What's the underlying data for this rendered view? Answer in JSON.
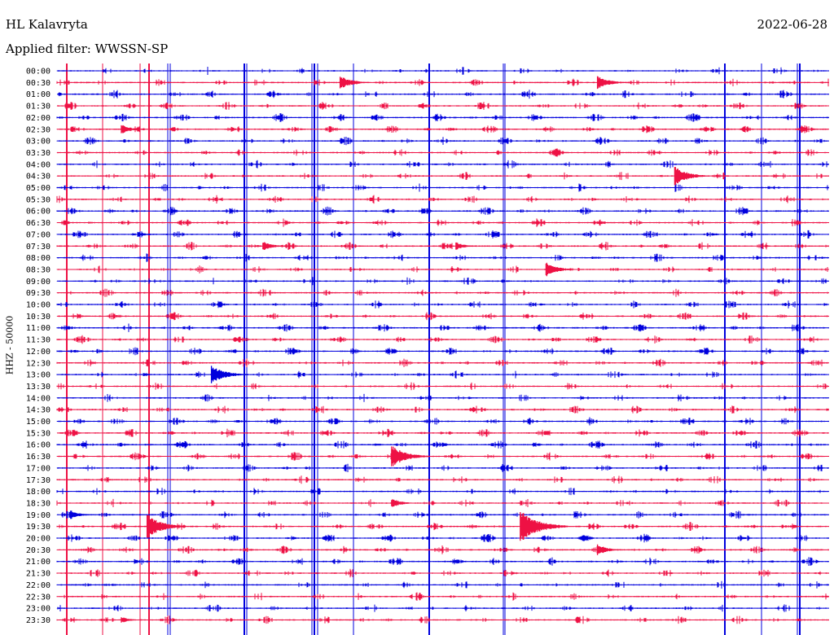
{
  "header": {
    "station": "HL Kalavryta",
    "filter": "Applied filter: WWSSN-SP",
    "date": "2022-06-28",
    "channel": "HHZ - 50000"
  },
  "colors": {
    "trace_a": "#0000dd",
    "trace_b": "#ee1144",
    "text": "#000000"
  },
  "chart_data": {
    "type": "line",
    "title": "HL Kalavryta",
    "ylabel": "HHZ - 50000",
    "rows": [
      "00:00",
      "00:30",
      "01:00",
      "01:30",
      "02:00",
      "02:30",
      "03:00",
      "03:30",
      "04:00",
      "04:30",
      "05:00",
      "05:30",
      "06:00",
      "06:30",
      "07:00",
      "07:30",
      "08:00",
      "08:30",
      "09:00",
      "09:30",
      "10:00",
      "10:30",
      "11:00",
      "11:30",
      "12:00",
      "12:30",
      "13:00",
      "13:30",
      "14:00",
      "14:30",
      "15:00",
      "15:30",
      "16:00",
      "16:30",
      "17:00",
      "17:30",
      "18:00",
      "18:30",
      "19:00",
      "19:30",
      "20:00",
      "20:30",
      "21:00",
      "21:30",
      "22:00",
      "22:30",
      "23:00",
      "23:30"
    ],
    "row_colors": [
      "blue",
      "red"
    ],
    "events": [
      {
        "row": "00:30",
        "minute": 11.0,
        "size": 9
      },
      {
        "row": "00:30",
        "minute": 21.0,
        "size": 9
      },
      {
        "row": "02:30",
        "minute": 2.5,
        "size": 6
      },
      {
        "row": "04:30",
        "minute": 24.0,
        "size": 12
      },
      {
        "row": "07:30",
        "minute": 8.0,
        "size": 6
      },
      {
        "row": "07:30",
        "minute": 15.5,
        "size": 5
      },
      {
        "row": "08:30",
        "minute": 19.0,
        "size": 9
      },
      {
        "row": "13:00",
        "minute": 6.0,
        "size": 12
      },
      {
        "row": "16:30",
        "minute": 13.0,
        "size": 14
      },
      {
        "row": "18:30",
        "minute": 13.0,
        "size": 6
      },
      {
        "row": "19:00",
        "minute": 0.5,
        "size": 6
      },
      {
        "row": "19:30",
        "minute": 3.5,
        "size": 15
      },
      {
        "row": "19:30",
        "minute": 18.0,
        "size": 20
      },
      {
        "row": "20:30",
        "minute": 21.0,
        "size": 7
      },
      {
        "row": "23:30",
        "minute": 2.5,
        "size": 4
      }
    ]
  }
}
